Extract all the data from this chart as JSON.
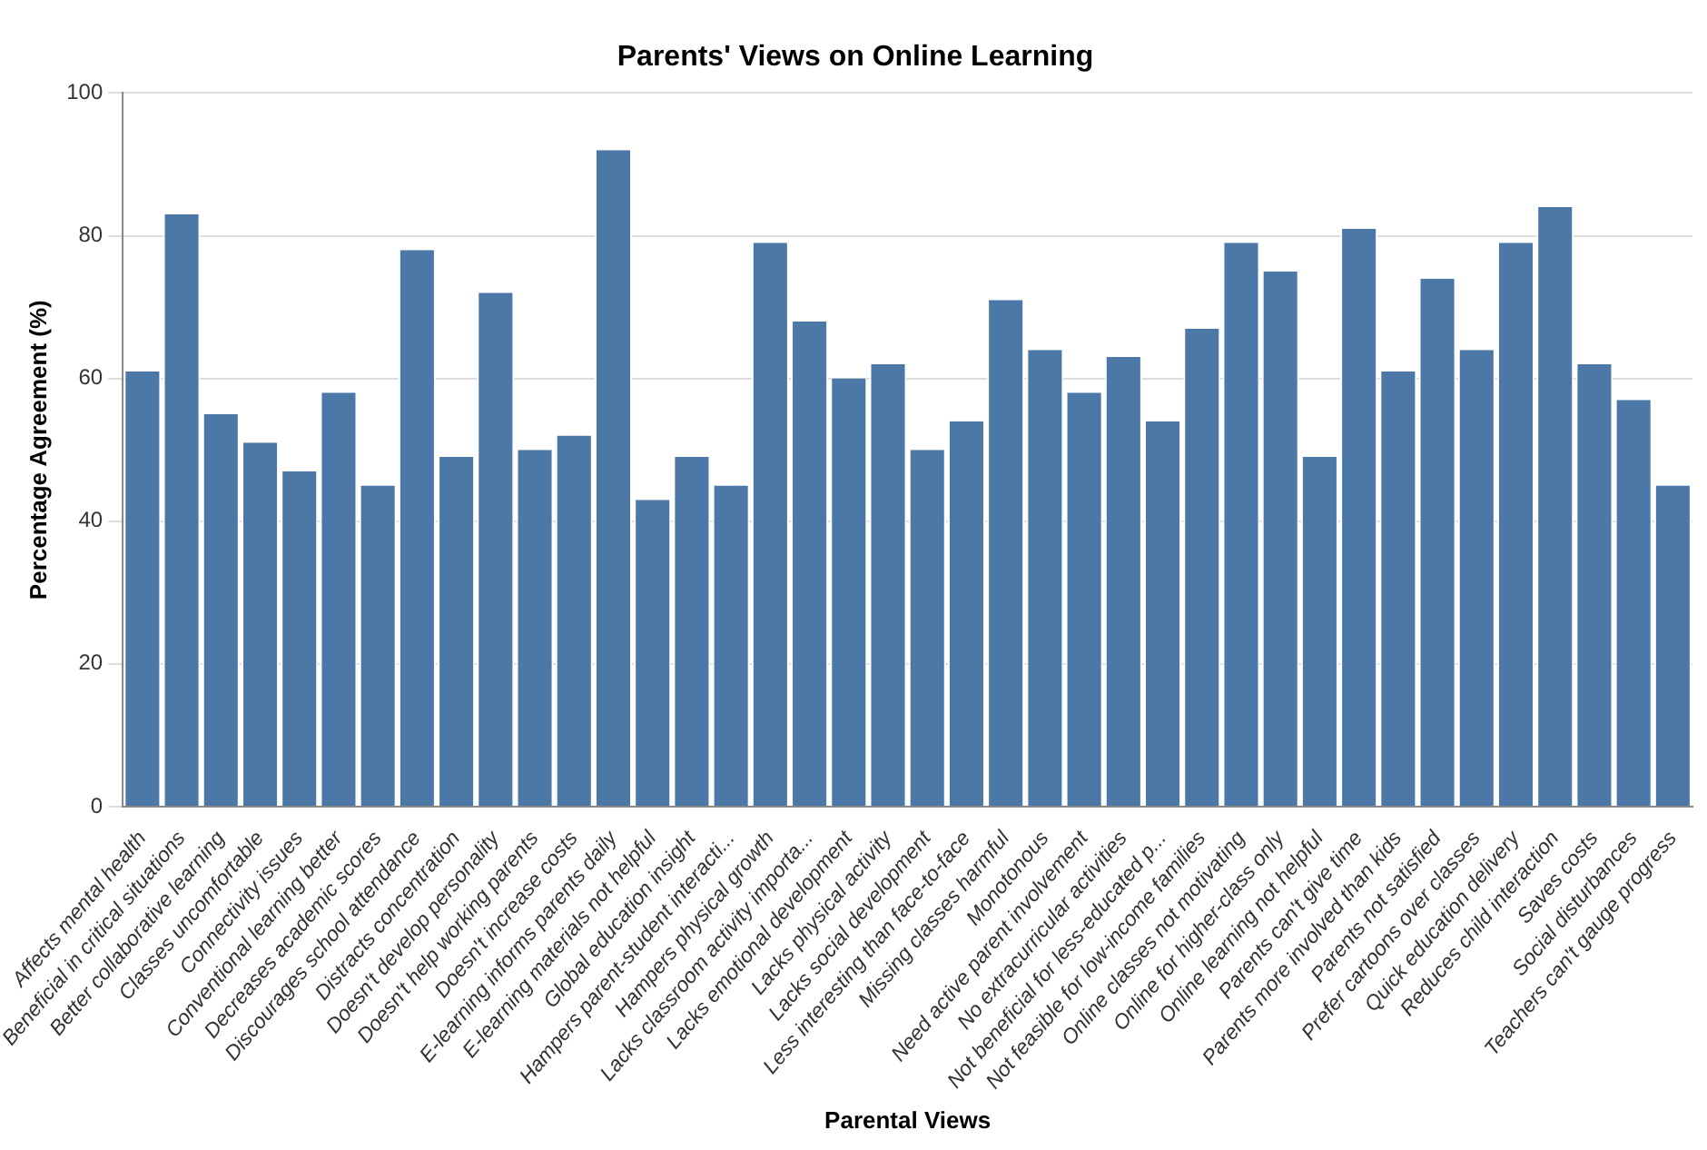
{
  "chart_data": {
    "type": "bar",
    "title": "Parents' Views on Online Learning",
    "xlabel": "Parental Views",
    "ylabel": "Percentage Agreement (%)",
    "categories": [
      "Affects mental health",
      "Beneficial in critical situations",
      "Better collaborative learning",
      "Classes uncomfortable",
      "Connectivity issues",
      "Conventional learning better",
      "Decreases academic scores",
      "Discourages school attendance",
      "Distracts concentration",
      "Doesn't develop personality",
      "Doesn't help working parents",
      "Doesn't increase costs",
      "E-learning informs parents daily",
      "E-learning materials not helpful",
      "Global education insight",
      "Hampers parent-student interacti...",
      "Hampers physical growth",
      "Lacks classroom activity importa...",
      "Lacks emotional development",
      "Lacks physical activity",
      "Lacks social development",
      "Less interesting than face-to-face",
      "Missing classes harmful",
      "Monotonous",
      "Need active parent involvement",
      "No extracurricular activities",
      "Not beneficial for less-educated p...",
      "Not feasible for low-income families",
      "Online classes not motivating",
      "Online for higher-class only",
      "Online learning not helpful",
      "Parents can't give time",
      "Parents more involved than kids",
      "Parents not satisfied",
      "Prefer cartoons over classes",
      "Quick education delivery",
      "Reduces child interaction",
      "Saves costs",
      "Social disturbances",
      "Teachers can't gauge progress"
    ],
    "values": [
      61,
      83,
      55,
      51,
      47,
      58,
      45,
      78,
      49,
      72,
      50,
      52,
      92,
      43,
      49,
      45,
      79,
      68,
      60,
      62,
      50,
      54,
      71,
      64,
      58,
      63,
      54,
      67,
      79,
      75,
      49,
      81,
      61,
      74,
      64,
      79,
      84,
      62,
      57,
      45
    ],
    "color": "#4c78a8",
    "ylim": [
      0,
      100
    ],
    "yticks": [
      0,
      20,
      40,
      60,
      80,
      100
    ],
    "grid": "y",
    "legend": false
  }
}
